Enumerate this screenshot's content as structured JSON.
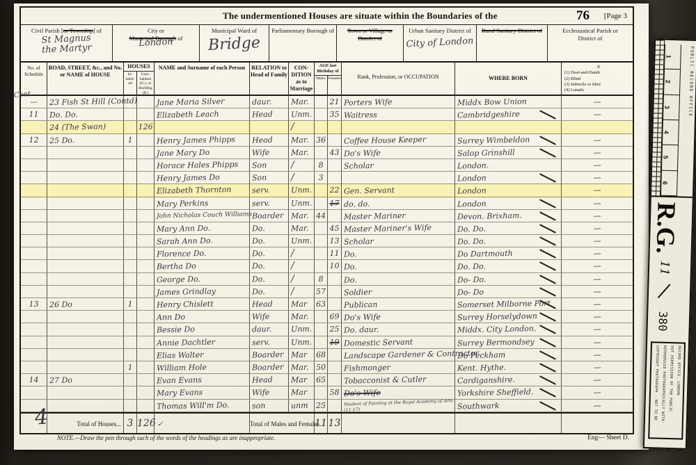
{
  "page": {
    "title": "The undermentioned Houses are situate within the Boundaries of the",
    "folio": "76",
    "page_label": "[Page 3"
  },
  "districts": [
    {
      "lines": [
        [
          {
            "t": "Civil Parish ["
          },
          {
            "t": "or Township",
            "s": true
          },
          {
            "t": "] of"
          }
        ]
      ],
      "value_lines": [
        "St Magnus",
        "the Martyr"
      ],
      "size": "two"
    },
    {
      "lines": [
        [
          {
            "t": "City or"
          }
        ],
        [
          {
            "t": "Municipal Borough",
            "s": true
          },
          {
            "t": " of"
          }
        ]
      ],
      "value_lines": [
        "London"
      ],
      "size": ""
    },
    {
      "lines": [
        [
          {
            "t": "Municipal Ward of"
          }
        ]
      ],
      "value_lines": [
        "Bridge"
      ],
      "size": "big"
    },
    {
      "lines": [
        [
          {
            "t": "Parliamentary Borough of"
          }
        ]
      ],
      "value_lines": [],
      "size": ""
    },
    {
      "lines": [
        [
          {
            "t": "Town or Village or",
            "s": true
          }
        ],
        [
          {
            "t": "Hamlet of",
            "s": true
          }
        ]
      ],
      "value_lines": [],
      "size": ""
    },
    {
      "lines": [
        [
          {
            "t": "Urban Sanitary District of"
          }
        ]
      ],
      "value_lines": [
        "City of London"
      ],
      "size": ""
    },
    {
      "lines": [
        [
          {
            "t": "Rural Sanitary District of",
            "s": true
          }
        ]
      ],
      "value_lines": [],
      "size": ""
    },
    {
      "lines": [
        [
          {
            "t": "Ecclesiastical Parish or"
          }
        ],
        [
          {
            "t": "District of"
          }
        ]
      ],
      "value_lines": [],
      "size": ""
    }
  ],
  "table_header": {
    "schedule": "No. of Schedule",
    "road": "ROAD, STREET, &c., and No. or NAME of HOUSE",
    "houses": "HOUSES",
    "inhabited": "In-habit-ed",
    "uninhabited": "Unin-habited (U.), or Building (B.)",
    "name": "NAME and Surname of each Person",
    "relation": "RELATION to Head of Family",
    "condition": "CON- DITION as to Marriage",
    "age": "AGE last Birthday of",
    "males": "Males",
    "females": "Females",
    "occupation": "Rank, Profession, or OCCUPATION",
    "born": "WHERE BORN",
    "disability_lines": [
      "If",
      "(1) Deaf-and-Dumb",
      "(2) Blind",
      "(3) Imbecile or Idiot",
      "(4) Lunatic"
    ]
  },
  "rows": [
    {
      "sched": "—",
      "road": "23 Fish St Hill (Contd)",
      "name": "Jane Maria Silver",
      "rel": "daur.",
      "cond": "Mar.",
      "f": "21",
      "occ": "Porters Wife",
      "born": "Middx   Bow Union",
      "dis": "—"
    },
    {
      "sched": "11",
      "road": "Do.   Do.",
      "name": "Elizabeth Leach",
      "rel": "Head",
      "cond": "Unm.",
      "f": "35",
      "occ": "Waitress",
      "born": "Cambridgeshire",
      "dis": "—",
      "tick": true
    },
    {
      "road": "24 (The Swan)",
      "uninh": "126",
      "hl": true,
      "cond": "/"
    },
    {
      "sched": "12",
      "road": "25  Do.",
      "inh": "1",
      "name": "Henry James Phipps",
      "rel": "Head",
      "cond": "Mar.",
      "m": "36",
      "occ": "Coffee House Keeper",
      "born": "Surrey  Wimbeldon",
      "dis": "—",
      "tick": true
    },
    {
      "name": "Jane Mary    Do",
      "rel": "Wife",
      "cond": "Mar.",
      "f": "43",
      "occ": "Do's  Wife",
      "born": "Salop   Grinshill",
      "dis": "—",
      "tick": true
    },
    {
      "name": "Horace Hales  Phipps",
      "rel": "Son",
      "cond": "/",
      "m": "8",
      "occ": "Scholar",
      "born": "London.",
      "dis": "—"
    },
    {
      "name": "Henry James   Do",
      "rel": "Son",
      "cond": "/",
      "m": "3",
      "born": "London",
      "dis": "—",
      "tick": true
    },
    {
      "name": "Elizabeth Thornton",
      "rel": "serv.",
      "cond": "Unm.",
      "f": "22",
      "occ": "Gen. Servant",
      "born": "London",
      "dis": "—",
      "hl": true
    },
    {
      "name": "Mary  Perkins",
      "rel": "serv.",
      "cond": "Unm.",
      "f": "17",
      "fStruck": true,
      "occ": "do.   do.",
      "born": "London",
      "dis": "—",
      "tick": true
    },
    {
      "name": "John Nicholas Couch Williams",
      "rel": "Boarder",
      "cond": "Mar.",
      "m": "44",
      "occ": "Master Mariner",
      "born": "Devon.   Brixham.",
      "dis": "—",
      "tick": true
    },
    {
      "name": "Mary Ann      Do.",
      "rel": "Do.",
      "cond": "Mar.",
      "f": "45",
      "occ": "Master Mariner's Wife",
      "born": "Do.        Do.",
      "dis": "—",
      "tick": true
    },
    {
      "name": "Sarah Ann     Do.",
      "rel": "Do.",
      "cond": "Unm.",
      "f": "13",
      "occ": "Scholar",
      "born": "Do.        Do.",
      "dis": "—",
      "tick": true
    },
    {
      "name": "Florence        Do.",
      "rel": "Do.",
      "cond": "/",
      "f": "11",
      "occ": "Do.",
      "born": "Do     Dartmouth",
      "dis": "—",
      "tick": true
    },
    {
      "name": "Bertha        Do",
      "rel": "Do.",
      "cond": "/",
      "f": "10",
      "occ": "Do.",
      "born": "Do.    Do.",
      "dis": "—",
      "tick": true
    },
    {
      "name": "George        Do.",
      "rel": "Do.",
      "cond": "/",
      "m": "8",
      "occ": "Do.",
      "born": "Do-    Do.",
      "dis": "—",
      "tick": true
    },
    {
      "name": "James  Grindlay",
      "rel": "Do.",
      "cond": "/",
      "m": "57",
      "occ": "Soldier",
      "born": "Do-    Do",
      "dis": "—",
      "tick": true
    },
    {
      "sched": "13",
      "road": "26  Do",
      "inh": "1",
      "name": "Henry Chislett",
      "rel": "Head",
      "cond": "Mar",
      "m": "63",
      "occ": "Publican",
      "born": "Somerset Milborne Port",
      "dis": "—",
      "tick": true
    },
    {
      "name": "Ann     Do",
      "rel": "Wife",
      "cond": "Mar.",
      "f": "69",
      "occ": "Do's  Wife",
      "born": "Surrey   Horselydown",
      "dis": "—",
      "tick": true
    },
    {
      "name": "Bessie  Do",
      "rel": "daur.",
      "cond": "Unm.",
      "f": "25",
      "occ": "Do.   daur.",
      "born": "Middx.   City London.",
      "dis": "—",
      "tick": true
    },
    {
      "name": "Annie Dachtler",
      "rel": "serv.",
      "cond": "Unm.",
      "f": "19",
      "fStruck": true,
      "occ": "Domestic Servant",
      "born": "Surrey  Bermondsey",
      "dis": "—",
      "tick": true
    },
    {
      "name": "Elias  Walter",
      "rel": "Boarder",
      "cond": "Mar",
      "m": "68",
      "occ": "Landscape Gardener & Contractor",
      "born": "Do      Peckham",
      "dis": "—",
      "tick": true
    },
    {
      "inh": "1",
      "name": "William Hole",
      "rel": "Boarder",
      "cond": "Mar.",
      "m": "50",
      "occ": "Fishmonger",
      "born": "Kent.   Hythe.",
      "dis": "—",
      "tick": true
    },
    {
      "sched": "14",
      "road": "27 Do",
      "name": "Evan  Evans",
      "rel": "Head",
      "cond": "Mar",
      "m": "65",
      "occ": "Tobacconist  &  Cutler",
      "born": "Cardiganshire.",
      "dis": "—",
      "tick": true
    },
    {
      "name": "Mary  Evans",
      "rel": "Wife",
      "cond": "Mar",
      "f": "58",
      "occ": "Do's  Wife",
      "occStruck": true,
      "born": "Yorkshire  Sheffield.",
      "dis": "—",
      "tick": true
    },
    {
      "name": "Thomas Will'm    Do.",
      "rel": "son",
      "cond": "unm",
      "m": "25",
      "occ": "Student of Painting at the Royal Academy of Arts. (11-17)",
      "occSmall": true,
      "born": "Southwark",
      "dis": "—",
      "tick": true
    }
  ],
  "totals": {
    "margin_mark": "4",
    "cont_mark": "Cont",
    "houses_label": "Total of Houses...",
    "houses_inhabited": "3",
    "houses_uninhabited": "126",
    "houses_check": "✓",
    "males_females_label": "Total of Males and Females...",
    "males": "11",
    "females": "13"
  },
  "footer": {
    "note": "NOTE.—Draw the pen through such of the words of the headings as are inappropriate.",
    "sheet": "Eng— Sheet D."
  },
  "stamps": {
    "office": "PUBLIC RECORD OFFICE",
    "ruler_numbers": [
      "1",
      "2",
      "3",
      "4",
      "5",
      "6"
    ],
    "rg": "R.G.",
    "series": "11",
    "piece": "380",
    "copyright_lines": [
      "COPYRIGHT PHOTOGRAPH - NOT TO BE",
      "REPRODUCED PHOTOGRAPHICALLY WITH-",
      "OUT PERMISSION OF THE PUBLIC",
      "RECORD OFFICE. LONDON"
    ]
  },
  "colors": {
    "highlight": "#faf1a6",
    "ink": "#38363f",
    "paper": "#f5f2e6"
  }
}
